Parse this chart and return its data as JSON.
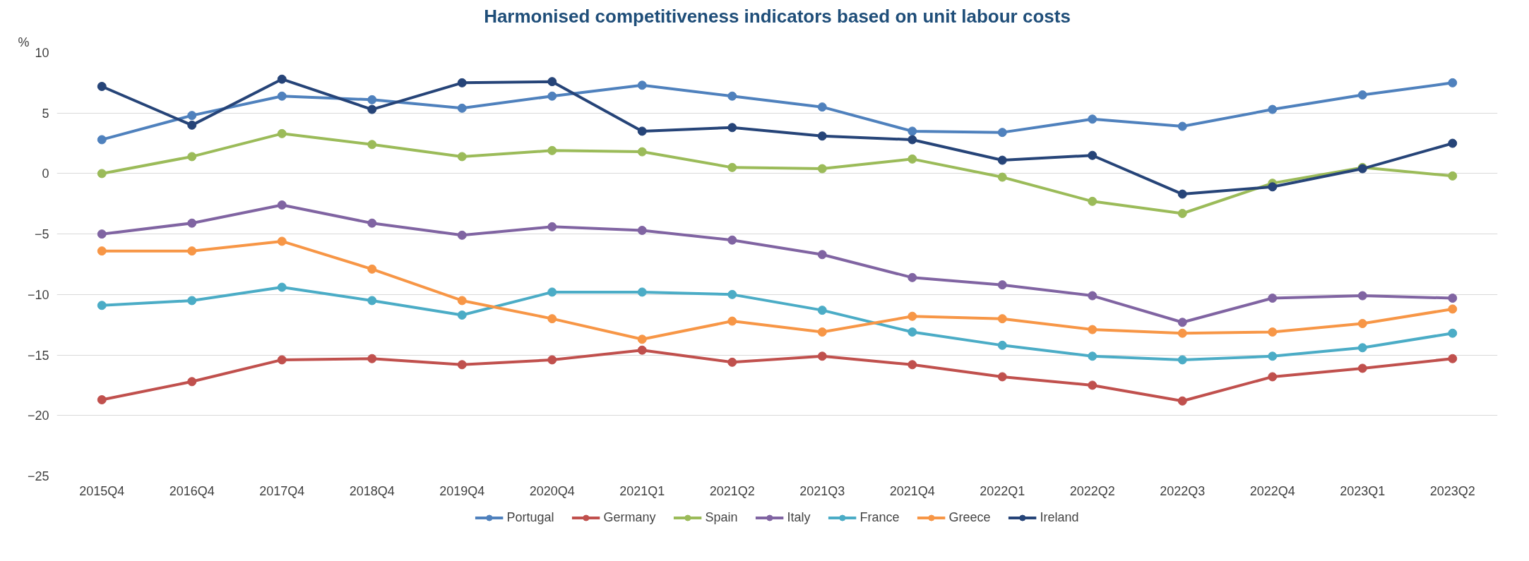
{
  "chart_data": {
    "type": "line",
    "title": "Harmonised competitiveness indicators based on unit labour costs",
    "ylabel": "%",
    "categories": [
      "2015Q4",
      "2016Q4",
      "2017Q4",
      "2018Q4",
      "2019Q4",
      "2020Q4",
      "2021Q1",
      "2021Q2",
      "2021Q3",
      "2021Q4",
      "2022Q1",
      "2022Q2",
      "2022Q3",
      "2022Q4",
      "2023Q1",
      "2023Q2"
    ],
    "ylim": [
      -25,
      10
    ],
    "yticks": [
      -25,
      -20,
      -15,
      -10,
      -5,
      0,
      5,
      10
    ],
    "grid": "y",
    "legend": "bottom",
    "marker": "circle",
    "line_style": "solid",
    "series": [
      {
        "name": "Portugal",
        "color": "#4f81bd",
        "values": [
          2.8,
          4.8,
          6.4,
          6.1,
          5.4,
          6.4,
          7.3,
          6.4,
          5.5,
          3.5,
          3.4,
          4.5,
          3.9,
          5.3,
          6.5,
          7.5
        ]
      },
      {
        "name": "Germany",
        "color": "#c0504d",
        "values": [
          -18.7,
          -17.2,
          -15.4,
          -15.3,
          -15.8,
          -15.4,
          -14.6,
          -15.6,
          -15.1,
          -15.8,
          -16.8,
          -17.5,
          -18.8,
          -16.8,
          -16.1,
          -15.3
        ]
      },
      {
        "name": "Spain",
        "color": "#9bbb59",
        "values": [
          0,
          1.4,
          3.3,
          2.4,
          1.4,
          1.9,
          1.8,
          0.5,
          0.4,
          1.2,
          -0.3,
          -2.3,
          -3.3,
          -0.8,
          0.5,
          -0.2
        ]
      },
      {
        "name": "Italy",
        "color": "#8064a2",
        "values": [
          -5.0,
          -4.1,
          -2.6,
          -4.1,
          -5.1,
          -4.4,
          -4.7,
          -5.5,
          -6.7,
          -8.6,
          -9.2,
          -10.1,
          -12.3,
          -10.3,
          -10.1,
          -10.3
        ]
      },
      {
        "name": "France",
        "color": "#4bacc6",
        "values": [
          -10.9,
          -10.5,
          -9.4,
          -10.5,
          -11.7,
          -9.8,
          -9.8,
          -10.0,
          -11.3,
          -13.1,
          -14.2,
          -15.1,
          -15.4,
          -15.1,
          -14.4,
          -13.2
        ]
      },
      {
        "name": "Greece",
        "color": "#f79646",
        "values": [
          -6.4,
          -6.4,
          -5.6,
          -7.9,
          -10.5,
          -12.0,
          -13.7,
          -12.2,
          -13.1,
          -11.8,
          -12.0,
          -12.9,
          -13.2,
          -13.1,
          -12.4,
          -11.2
        ]
      },
      {
        "name": "Ireland",
        "color": "#264478",
        "values": [
          7.2,
          4.0,
          7.8,
          5.3,
          7.5,
          7.6,
          3.5,
          3.8,
          3.1,
          2.8,
          1.1,
          1.5,
          -1.7,
          -1.1,
          0.4,
          2.5
        ]
      }
    ]
  }
}
